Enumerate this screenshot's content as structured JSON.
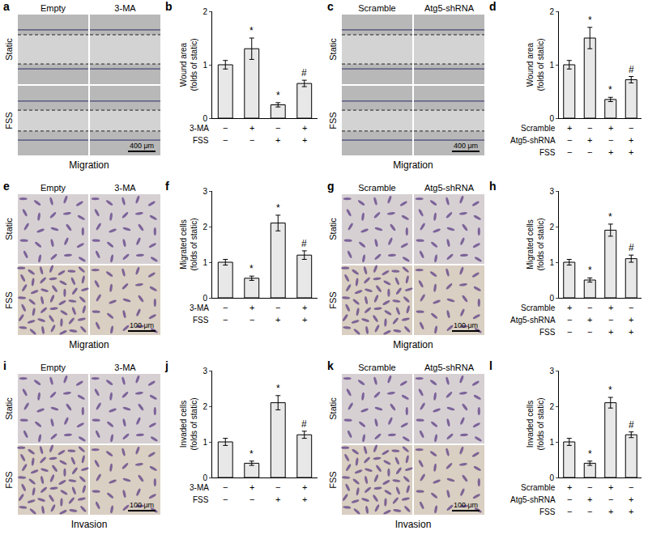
{
  "images": [
    {
      "letter": "a",
      "columns": [
        "Empty",
        "3-MA"
      ],
      "rows": [
        "Static",
        "FSS"
      ],
      "scale_bar": "400 μm",
      "caption": "Migration",
      "style": "wound"
    },
    {
      "letter": "c",
      "columns": [
        "Scramble",
        "Atg5-shRNA"
      ],
      "rows": [
        "Static",
        "FSS"
      ],
      "scale_bar": "400 μm",
      "caption": "Migration",
      "style": "wound"
    },
    {
      "letter": "e",
      "columns": [
        "Empty",
        "3-MA"
      ],
      "rows": [
        "Static",
        "FSS"
      ],
      "scale_bar": "100 μm",
      "caption": "Migration",
      "style": "cells"
    },
    {
      "letter": "g",
      "columns": [
        "Scramble",
        "Atg5-shRNA"
      ],
      "rows": [
        "Static",
        "FSS"
      ],
      "scale_bar": "100 μm",
      "caption": "Migration",
      "style": "cells"
    },
    {
      "letter": "i",
      "columns": [
        "Empty",
        "3-MA"
      ],
      "rows": [
        "Static",
        "FSS"
      ],
      "scale_bar": "100 μm",
      "caption": "Invasion",
      "style": "cells"
    },
    {
      "letter": "k",
      "columns": [
        "Scramble",
        "Atg5-shRNA"
      ],
      "rows": [
        "Static",
        "FSS"
      ],
      "scale_bar": "100 μm",
      "caption": "Invasion",
      "style": "cells"
    }
  ],
  "chart_data": [
    {
      "letter": "b",
      "type": "bar",
      "ylabel": "Wound area\n(folds of static)",
      "categories": [
        null,
        null,
        null,
        null
      ],
      "values": [
        1.0,
        1.3,
        0.25,
        0.65
      ],
      "errors": [
        0.08,
        0.2,
        0.04,
        0.06
      ],
      "marks": [
        null,
        "*",
        "*",
        "#"
      ],
      "conditions": [
        {
          "name": "3-MA",
          "signs": [
            "−",
            "+",
            "−",
            "+"
          ]
        },
        {
          "name": "FSS",
          "signs": [
            "−",
            "−",
            "+",
            "+"
          ]
        }
      ],
      "color": "#e8e8e8",
      "ylim": [
        0,
        2
      ],
      "yticks": [
        0,
        1,
        2
      ],
      "grid": false
    },
    {
      "letter": "d",
      "type": "bar",
      "ylabel": "Wound area\n(folds of static)",
      "categories": [
        null,
        null,
        null,
        null
      ],
      "values": [
        1.0,
        1.5,
        0.35,
        0.72
      ],
      "errors": [
        0.08,
        0.2,
        0.04,
        0.06
      ],
      "marks": [
        null,
        "*",
        "*",
        "#"
      ],
      "conditions": [
        {
          "name": "Scramble",
          "signs": [
            "+",
            "−",
            "+",
            "−"
          ]
        },
        {
          "name": "Atg5-shRNA",
          "signs": [
            "−",
            "+",
            "−",
            "+"
          ]
        },
        {
          "name": "FSS",
          "signs": [
            "−",
            "−",
            "+",
            "+"
          ]
        }
      ],
      "color": "#e8e8e8",
      "ylim": [
        0,
        2
      ],
      "yticks": [
        0,
        1,
        2
      ],
      "grid": false
    },
    {
      "letter": "f",
      "type": "bar",
      "ylabel": "Migrated cells\n(folds of static)",
      "categories": [
        null,
        null,
        null,
        null
      ],
      "values": [
        1.0,
        0.55,
        2.1,
        1.2
      ],
      "errors": [
        0.08,
        0.06,
        0.22,
        0.12
      ],
      "marks": [
        null,
        "*",
        "*",
        "#"
      ],
      "conditions": [
        {
          "name": "3-MA",
          "signs": [
            "−",
            "+",
            "−",
            "+"
          ]
        },
        {
          "name": "FSS",
          "signs": [
            "−",
            "−",
            "+",
            "+"
          ]
        }
      ],
      "color": "#e8e8e8",
      "ylim": [
        0,
        3
      ],
      "yticks": [
        0,
        1,
        2,
        3
      ],
      "grid": false
    },
    {
      "letter": "h",
      "type": "bar",
      "ylabel": "Migrated cells\n(folds of static)",
      "categories": [
        null,
        null,
        null,
        null
      ],
      "values": [
        1.0,
        0.5,
        1.9,
        1.1
      ],
      "errors": [
        0.08,
        0.06,
        0.17,
        0.1
      ],
      "marks": [
        null,
        "*",
        "*",
        "#"
      ],
      "conditions": [
        {
          "name": "Scramble",
          "signs": [
            "+",
            "−",
            "+",
            "−"
          ]
        },
        {
          "name": "Atg5-shRNA",
          "signs": [
            "−",
            "+",
            "−",
            "+"
          ]
        },
        {
          "name": "FSS",
          "signs": [
            "−",
            "−",
            "+",
            "+"
          ]
        }
      ],
      "color": "#e8e8e8",
      "ylim": [
        0,
        3
      ],
      "yticks": [
        0,
        1,
        2,
        3
      ],
      "grid": false
    },
    {
      "letter": "j",
      "type": "bar",
      "ylabel": "Invaded cells\n(folds of static)",
      "categories": [
        null,
        null,
        null,
        null
      ],
      "values": [
        1.0,
        0.4,
        2.1,
        1.2
      ],
      "errors": [
        0.1,
        0.06,
        0.2,
        0.1
      ],
      "marks": [
        null,
        "*",
        "*",
        "#"
      ],
      "conditions": [
        {
          "name": "3-MA",
          "signs": [
            "−",
            "+",
            "−",
            "+"
          ]
        },
        {
          "name": "FSS",
          "signs": [
            "−",
            "−",
            "+",
            "+"
          ]
        }
      ],
      "color": "#e8e8e8",
      "ylim": [
        0,
        3
      ],
      "yticks": [
        0,
        1,
        2,
        3
      ],
      "grid": false
    },
    {
      "letter": "l",
      "type": "bar",
      "ylabel": "Invaded cells\n(folds of static)",
      "categories": [
        null,
        null,
        null,
        null
      ],
      "values": [
        1.0,
        0.4,
        2.1,
        1.2
      ],
      "errors": [
        0.1,
        0.06,
        0.15,
        0.08
      ],
      "marks": [
        null,
        "*",
        "*",
        "#"
      ],
      "conditions": [
        {
          "name": "Scramble",
          "signs": [
            "+",
            "−",
            "+",
            "−"
          ]
        },
        {
          "name": "Atg5-shRNA",
          "signs": [
            "−",
            "+",
            "−",
            "+"
          ]
        },
        {
          "name": "FSS",
          "signs": [
            "−",
            "−",
            "+",
            "+"
          ]
        }
      ],
      "color": "#e8e8e8",
      "ylim": [
        0,
        3
      ],
      "yticks": [
        0,
        1,
        2,
        3
      ],
      "grid": false
    }
  ]
}
